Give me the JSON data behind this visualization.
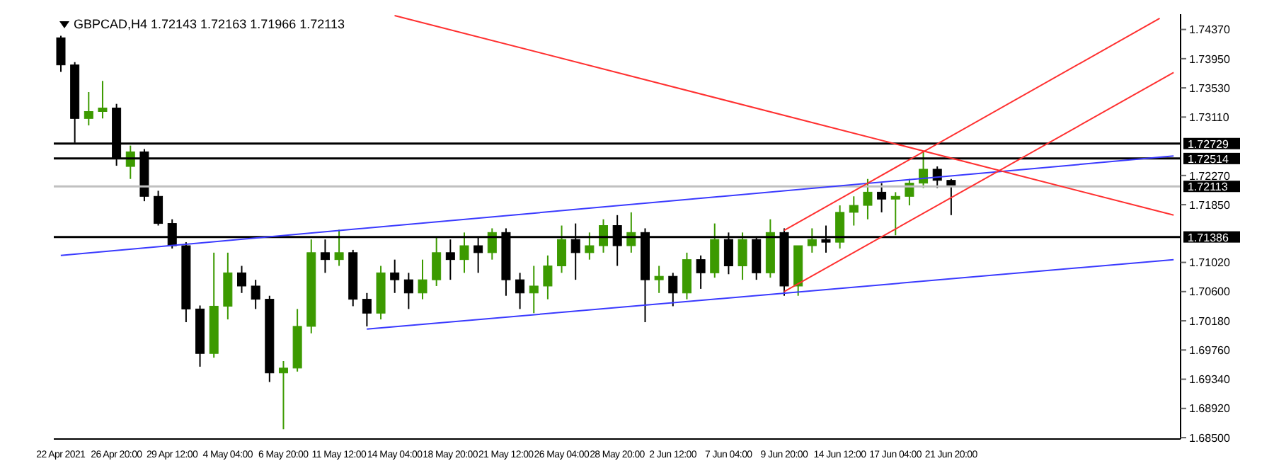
{
  "chart_data": {
    "type": "candlestick",
    "title": "GBPCAD,H4  1.72143 1.72163 1.71966 1.72113",
    "categories": [
      "22 Apr 2021",
      null,
      null,
      null,
      "26 Apr 20:00",
      null,
      null,
      null,
      "29 Apr 12:00",
      null,
      null,
      null,
      "4 May 04:00",
      null,
      null,
      null,
      "6 May 20:00",
      null,
      null,
      null,
      "11 May 12:00",
      null,
      null,
      null,
      "14 May 04:00",
      null,
      null,
      null,
      "18 May 20:00",
      null,
      null,
      null,
      "21 May 12:00",
      null,
      null,
      null,
      "26 May 04:00",
      null,
      null,
      null,
      "28 May 20:00",
      null,
      null,
      null,
      "2 Jun 12:00",
      null,
      null,
      null,
      "7 Jun 04:00",
      null,
      null,
      null,
      "9 Jun 20:00",
      null,
      null,
      null,
      "14 Jun 12:00",
      null,
      null,
      null,
      "17 Jun 04:00",
      null,
      null,
      null,
      "21 Jun 20:00",
      null,
      null,
      null,
      null,
      null,
      null,
      null,
      null,
      null,
      null,
      null,
      null,
      null,
      null,
      null,
      null
    ],
    "ohlc": [
      [
        1.7425,
        1.7428,
        1.7376,
        1.7386
      ],
      [
        1.7386,
        1.739,
        1.7274,
        1.7309
      ],
      [
        1.7309,
        1.7347,
        1.7299,
        1.7319
      ],
      [
        1.7319,
        1.7363,
        1.7309,
        1.7324
      ],
      [
        1.7324,
        1.733,
        1.7241,
        1.7251
      ],
      [
        1.724,
        1.727,
        1.7222,
        1.7261
      ],
      [
        1.7261,
        1.7265,
        1.719,
        1.7197
      ],
      [
        1.7197,
        1.7205,
        1.7155,
        1.7158
      ],
      [
        1.7158,
        1.7164,
        1.7122,
        1.7126
      ],
      [
        1.7126,
        1.7131,
        1.7016,
        1.7035
      ],
      [
        1.7035,
        1.704,
        1.6952,
        1.6971
      ],
      [
        1.6971,
        1.7116,
        1.6965,
        1.7039
      ],
      [
        1.7039,
        1.7116,
        1.702,
        1.7087
      ],
      [
        1.7087,
        1.7097,
        1.7058,
        1.7068
      ],
      [
        1.7068,
        1.7077,
        1.7035,
        1.7049
      ],
      [
        1.7049,
        1.7054,
        1.693,
        1.6943
      ],
      [
        1.6943,
        1.696,
        1.6862,
        1.695
      ],
      [
        1.695,
        1.7035,
        1.6945,
        1.701
      ],
      [
        1.701,
        1.7135,
        1.7,
        1.7116
      ],
      [
        1.7116,
        1.7135,
        1.7087,
        1.7106
      ],
      [
        1.7106,
        1.7149,
        1.7097,
        1.7116
      ],
      [
        1.7116,
        1.712,
        1.7039,
        1.7049
      ],
      [
        1.7049,
        1.7058,
        1.701,
        1.7029
      ],
      [
        1.7029,
        1.7097,
        1.702,
        1.7087
      ],
      [
        1.7087,
        1.7106,
        1.7058,
        1.7077
      ],
      [
        1.7077,
        1.7087,
        1.7035,
        1.7058
      ],
      [
        1.7058,
        1.7106,
        1.7049,
        1.7077
      ],
      [
        1.7077,
        1.7139,
        1.7068,
        1.7116
      ],
      [
        1.7116,
        1.7135,
        1.7077,
        1.7106
      ],
      [
        1.7106,
        1.7145,
        1.7087,
        1.7126
      ],
      [
        1.7126,
        1.7139,
        1.7087,
        1.7116
      ],
      [
        1.7116,
        1.7151,
        1.7106,
        1.7145
      ],
      [
        1.7145,
        1.7151,
        1.7054,
        1.7077
      ],
      [
        1.7077,
        1.7087,
        1.7035,
        1.7058
      ],
      [
        1.7058,
        1.7097,
        1.7029,
        1.7068
      ],
      [
        1.7068,
        1.7112,
        1.7049,
        1.7097
      ],
      [
        1.7097,
        1.7155,
        1.7087,
        1.7135
      ],
      [
        1.7135,
        1.7158,
        1.7077,
        1.7116
      ],
      [
        1.7116,
        1.7145,
        1.7106,
        1.7126
      ],
      [
        1.7126,
        1.7164,
        1.7116,
        1.7155
      ],
      [
        1.7155,
        1.717,
        1.7097,
        1.7126
      ],
      [
        1.7126,
        1.7174,
        1.7116,
        1.7145
      ],
      [
        1.7145,
        1.7151,
        1.7016,
        1.7077
      ],
      [
        1.7077,
        1.7097,
        1.7058,
        1.7082
      ],
      [
        1.7082,
        1.7087,
        1.7039,
        1.7058
      ],
      [
        1.7058,
        1.7116,
        1.7049,
        1.7106
      ],
      [
        1.7106,
        1.7112,
        1.7064,
        1.7087
      ],
      [
        1.7087,
        1.7158,
        1.708,
        1.7135
      ],
      [
        1.7135,
        1.7145,
        1.7085,
        1.7097
      ],
      [
        1.7097,
        1.7145,
        1.7077,
        1.7135
      ],
      [
        1.7135,
        1.7139,
        1.7077,
        1.7087
      ],
      [
        1.7087,
        1.7164,
        1.708,
        1.7145
      ],
      [
        1.7145,
        1.7151,
        1.7054,
        1.7068
      ],
      [
        1.7068,
        1.7126,
        1.7054,
        1.7126
      ],
      [
        1.7126,
        1.7151,
        1.7116,
        1.7135
      ],
      [
        1.7135,
        1.7155,
        1.7116,
        1.7131
      ],
      [
        1.7131,
        1.7184,
        1.7122,
        1.7174
      ],
      [
        1.7174,
        1.7197,
        1.7155,
        1.7184
      ],
      [
        1.7184,
        1.7222,
        1.7164,
        1.7203
      ],
      [
        1.7203,
        1.7216,
        1.7174,
        1.7193
      ],
      [
        1.7193,
        1.7203,
        1.7141,
        1.7197
      ],
      [
        1.7197,
        1.7222,
        1.7184,
        1.7216
      ],
      [
        1.7216,
        1.7261,
        1.7209,
        1.7236
      ],
      [
        1.7236,
        1.724,
        1.7209,
        1.722
      ],
      [
        1.722,
        1.7222,
        1.717,
        1.72113
      ],
      null,
      null,
      null,
      null,
      null,
      null,
      null,
      null,
      null,
      null,
      null,
      null,
      null,
      null,
      null,
      null
    ],
    "colors": [
      "#000000",
      "#000000",
      "#3c9a00",
      "#3c9a00",
      "#000000",
      "#3c9a00",
      "#000000",
      "#000000",
      "#000000",
      "#000000",
      "#000000",
      "#3c9a00",
      "#3c9a00",
      "#000000",
      "#000000",
      "#000000",
      "#3c9a00",
      "#3c9a00",
      "#3c9a00",
      "#000000",
      "#3c9a00",
      "#000000",
      "#000000",
      "#3c9a00",
      "#000000",
      "#000000",
      "#3c9a00",
      "#3c9a00",
      "#000000",
      "#3c9a00",
      "#000000",
      "#3c9a00",
      "#000000",
      "#000000",
      "#3c9a00",
      "#3c9a00",
      "#3c9a00",
      "#000000",
      "#3c9a00",
      "#3c9a00",
      "#000000",
      "#3c9a00",
      "#000000",
      "#3c9a00",
      "#000000",
      "#3c9a00",
      "#000000",
      "#3c9a00",
      "#000000",
      "#3c9a00",
      "#000000",
      "#3c9a00",
      "#000000",
      "#3c9a00",
      "#3c9a00",
      "#000000",
      "#3c9a00",
      "#3c9a00",
      "#3c9a00",
      "#000000",
      "#3c9a00",
      "#3c9a00",
      "#3c9a00",
      "#000000",
      "#000000",
      null,
      null,
      null,
      null,
      null,
      null,
      null,
      null,
      null,
      null,
      null,
      null,
      null,
      null,
      null,
      null
    ],
    "series": [
      {
        "type": "line",
        "color": "#3a3aff",
        "values": [
          1.7112,
          null,
          null,
          null,
          null,
          null,
          null,
          null,
          null,
          null,
          null,
          null,
          null,
          null,
          null,
          null,
          null,
          null,
          null,
          null,
          null,
          null,
          null,
          null,
          null,
          null,
          null,
          null,
          null,
          null,
          null,
          null,
          null,
          null,
          null,
          null,
          null,
          null,
          null,
          null,
          null,
          null,
          null,
          null,
          null,
          null,
          null,
          null,
          null,
          null,
          null,
          null,
          null,
          null,
          null,
          null,
          null,
          null,
          null,
          null,
          null,
          null,
          null,
          null,
          null,
          null,
          null,
          null,
          null,
          null,
          null,
          null,
          null,
          null,
          null,
          null,
          null,
          null,
          null,
          null,
          1.7255
        ]
      },
      {
        "type": "line",
        "color": "#3a3aff",
        "values": [
          null,
          null,
          null,
          null,
          null,
          null,
          null,
          null,
          null,
          null,
          null,
          null,
          null,
          null,
          null,
          null,
          null,
          null,
          null,
          null,
          null,
          null,
          1.7006,
          null,
          null,
          null,
          null,
          null,
          null,
          null,
          null,
          null,
          null,
          null,
          null,
          null,
          null,
          null,
          null,
          null,
          null,
          null,
          null,
          null,
          null,
          null,
          null,
          null,
          null,
          null,
          null,
          null,
          null,
          null,
          null,
          null,
          null,
          null,
          null,
          null,
          null,
          null,
          null,
          null,
          null,
          null,
          null,
          null,
          null,
          null,
          null,
          null,
          null,
          null,
          null,
          null,
          null,
          null,
          null,
          null,
          1.7106
        ]
      },
      {
        "type": "line",
        "color": "#ff3030",
        "values": [
          null,
          null,
          null,
          null,
          null,
          null,
          null,
          null,
          null,
          null,
          null,
          null,
          null,
          null,
          null,
          null,
          null,
          null,
          null,
          null,
          null,
          null,
          null,
          null,
          1.7457,
          null,
          null,
          null,
          null,
          null,
          null,
          null,
          null,
          null,
          null,
          null,
          null,
          null,
          null,
          null,
          null,
          null,
          null,
          null,
          null,
          null,
          null,
          null,
          null,
          null,
          null,
          null,
          null,
          null,
          null,
          null,
          null,
          null,
          null,
          null,
          null,
          null,
          null,
          null,
          null,
          null,
          null,
          null,
          null,
          null,
          null,
          null,
          null,
          null,
          null,
          null,
          null,
          null,
          null,
          null,
          1.717
        ]
      },
      {
        "type": "line",
        "color": "#ff3030",
        "values": [
          null,
          null,
          null,
          null,
          null,
          null,
          null,
          null,
          null,
          null,
          null,
          null,
          null,
          null,
          null,
          null,
          null,
          null,
          null,
          null,
          null,
          null,
          null,
          null,
          null,
          null,
          null,
          null,
          null,
          null,
          null,
          null,
          null,
          null,
          null,
          null,
          null,
          null,
          null,
          null,
          null,
          null,
          null,
          null,
          null,
          null,
          null,
          null,
          null,
          null,
          null,
          null,
          1.7148,
          null,
          null,
          null,
          null,
          null,
          null,
          null,
          null,
          null,
          null,
          null,
          null,
          null,
          null,
          null,
          null,
          null,
          null,
          null,
          null,
          null,
          null,
          null,
          null,
          null,
          null,
          1.7453,
          null
        ]
      },
      {
        "type": "line",
        "color": "#ff3030",
        "values": [
          null,
          null,
          null,
          null,
          null,
          null,
          null,
          null,
          null,
          null,
          null,
          null,
          null,
          null,
          null,
          null,
          null,
          null,
          null,
          null,
          null,
          null,
          null,
          null,
          null,
          null,
          null,
          null,
          null,
          null,
          null,
          null,
          null,
          null,
          null,
          null,
          null,
          null,
          null,
          null,
          null,
          null,
          null,
          null,
          null,
          null,
          null,
          null,
          null,
          null,
          null,
          null,
          1.706,
          null,
          null,
          null,
          null,
          null,
          null,
          null,
          null,
          null,
          null,
          null,
          null,
          null,
          null,
          null,
          null,
          null,
          null,
          null,
          null,
          null,
          null,
          null,
          null,
          null,
          null,
          null,
          1.7375
        ]
      }
    ],
    "ylim": [
      1.6848,
      1.7459
    ],
    "yticks": [
      {
        "value": 1.7437,
        "label": "1.74370"
      },
      {
        "value": 1.7395,
        "label": "1.73950"
      },
      {
        "value": 1.7353,
        "label": "1.73530"
      },
      {
        "value": 1.7311,
        "label": "1.73110"
      },
      {
        "value": 1.7227,
        "label": "1.72270"
      },
      {
        "value": 1.7185,
        "label": "1.71850"
      },
      {
        "value": 1.7102,
        "label": "1.71020"
      },
      {
        "value": 1.706,
        "label": "1.70600"
      },
      {
        "value": 1.7018,
        "label": "1.70180"
      },
      {
        "value": 1.6976,
        "label": "1.69760"
      },
      {
        "value": 1.6934,
        "label": "1.69340"
      },
      {
        "value": 1.6892,
        "label": "1.68920"
      },
      {
        "value": 1.685,
        "label": "1.68500"
      }
    ],
    "ref_lines": [
      {
        "axis": "y",
        "value": 1.72729,
        "label": "1.72729",
        "color": "#000000"
      },
      {
        "axis": "y",
        "value": 1.72514,
        "label": "1.72514",
        "color": "#000000"
      },
      {
        "axis": "y",
        "value": 1.72113,
        "label": "1.72113",
        "color": "#c0c0c0"
      },
      {
        "axis": "y",
        "value": 1.71386,
        "label": "1.71386",
        "color": "#000000"
      }
    ]
  }
}
